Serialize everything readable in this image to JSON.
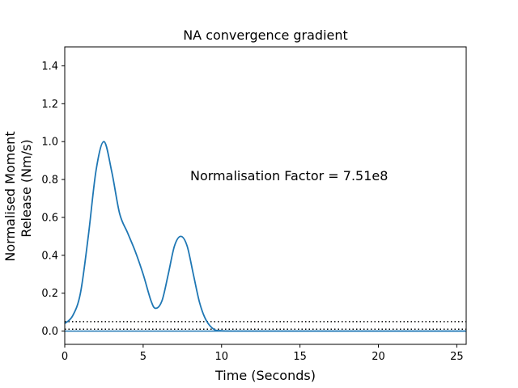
{
  "chart_data": {
    "type": "line",
    "title": "NA convergence gradient",
    "xlabel": "Time (Seconds)",
    "ylabel_lines": [
      "Normalised Moment",
      "Release (Nm/s)"
    ],
    "xlim": [
      0,
      25.6
    ],
    "ylim": [
      -0.07,
      1.5
    ],
    "xticks": [
      0,
      5,
      10,
      15,
      20,
      25
    ],
    "yticks": [
      0.0,
      0.2,
      0.4,
      0.6,
      0.8,
      1.0,
      1.2,
      1.4
    ],
    "xtick_labels": [
      "0",
      "5",
      "10",
      "15",
      "20",
      "25"
    ],
    "ytick_labels": [
      "0.0",
      "0.2",
      "0.4",
      "0.6",
      "0.8",
      "1.0",
      "1.2",
      "1.4"
    ],
    "annotation": {
      "text": "Normalisation Factor = 7.51e8",
      "x": 8.0,
      "y": 0.8
    },
    "grid": false,
    "series": [
      {
        "color": "#1f77b4",
        "x": [
          0,
          0.5,
          1.0,
          1.5,
          2.0,
          2.5,
          3.0,
          3.5,
          4.0,
          4.5,
          5.0,
          5.5,
          5.8,
          6.2,
          6.6,
          7.0,
          7.4,
          7.8,
          8.2,
          8.6,
          9.0,
          9.5,
          10.0,
          11.0,
          15.0,
          20.0,
          25.6
        ],
        "y": [
          0.04,
          0.08,
          0.2,
          0.5,
          0.85,
          1.0,
          0.84,
          0.62,
          0.52,
          0.42,
          0.3,
          0.16,
          0.12,
          0.16,
          0.3,
          0.45,
          0.5,
          0.45,
          0.3,
          0.15,
          0.06,
          0.01,
          0.002,
          0.0,
          0.0,
          0.0,
          0.0
        ]
      }
    ],
    "hlines": [
      {
        "y": 0.05,
        "style": "dotted",
        "color": "#000000"
      },
      {
        "y": 0.01,
        "style": "dotted",
        "color": "#000000"
      },
      {
        "y": 0.0,
        "style": "solid",
        "color": "#1f77b4"
      }
    ]
  }
}
